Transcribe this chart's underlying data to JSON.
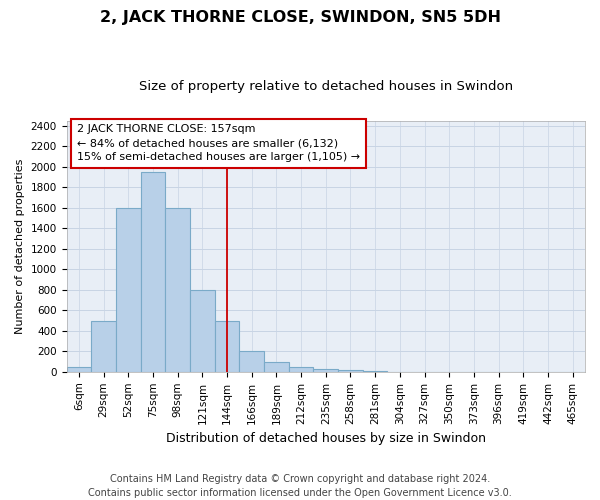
{
  "title": "2, JACK THORNE CLOSE, SWINDON, SN5 5DH",
  "subtitle": "Size of property relative to detached houses in Swindon",
  "xlabel": "Distribution of detached houses by size in Swindon",
  "ylabel": "Number of detached properties",
  "footer_line1": "Contains HM Land Registry data © Crown copyright and database right 2024.",
  "footer_line2": "Contains public sector information licensed under the Open Government Licence v3.0.",
  "categories": [
    "6sqm",
    "29sqm",
    "52sqm",
    "75sqm",
    "98sqm",
    "121sqm",
    "144sqm",
    "166sqm",
    "189sqm",
    "212sqm",
    "235sqm",
    "258sqm",
    "281sqm",
    "304sqm",
    "327sqm",
    "350sqm",
    "373sqm",
    "396sqm",
    "419sqm",
    "442sqm",
    "465sqm"
  ],
  "values": [
    50,
    500,
    1600,
    1950,
    1600,
    800,
    500,
    200,
    100,
    50,
    30,
    20,
    5,
    3,
    2,
    0,
    0,
    0,
    0,
    0,
    0
  ],
  "bar_color": "#b8d0e8",
  "bar_edge_color": "#7aaac8",
  "bar_linewidth": 0.8,
  "grid_color": "#c8d4e4",
  "bg_color": "#e8eef6",
  "annotation_text": "2 JACK THORNE CLOSE: 157sqm\n← 84% of detached houses are smaller (6,132)\n15% of semi-detached houses are larger (1,105) →",
  "annotation_box_edge_color": "#cc0000",
  "vline_x_index": 6,
  "vline_color": "#cc0000",
  "ylim": [
    0,
    2450
  ],
  "yticks": [
    0,
    200,
    400,
    600,
    800,
    1000,
    1200,
    1400,
    1600,
    1800,
    2000,
    2200,
    2400
  ],
  "title_fontsize": 11.5,
  "subtitle_fontsize": 9.5,
  "xlabel_fontsize": 9,
  "ylabel_fontsize": 8,
  "tick_fontsize": 7.5,
  "annotation_fontsize": 8,
  "footer_fontsize": 7
}
